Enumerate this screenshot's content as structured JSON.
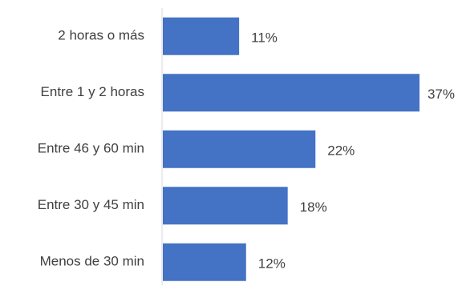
{
  "chart_data": {
    "type": "bar",
    "orientation": "horizontal",
    "categories": [
      "2 horas o más",
      "Entre 1 y 2 horas",
      "Entre 46 y 60 min",
      "Entre 30 y 45 min",
      "Menos de 30 min"
    ],
    "values": [
      11,
      37,
      22,
      18,
      12
    ],
    "data_labels": [
      "11%",
      "37%",
      "22%",
      "18%",
      "12%"
    ],
    "xlim": [
      0,
      37
    ],
    "grid": false,
    "legend": "none",
    "bar_color": "#4472C4",
    "axis_color": "#D9D9D9"
  }
}
